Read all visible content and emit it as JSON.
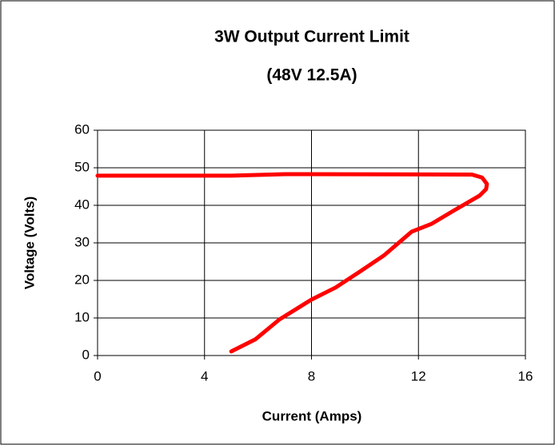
{
  "chart_data": {
    "type": "line",
    "title": "3W Output Current Limit",
    "subtitle": "(48V 12.5A)",
    "x_label": "Current (Amps)",
    "y_label": "Voltage (Volts)",
    "x": [
      0,
      5.0,
      7.0,
      14.0,
      14.38,
      14.56,
      14.53,
      14.29,
      13.25,
      12.5,
      11.75,
      10.7,
      9.8,
      8.9,
      8.0,
      6.8,
      5.9,
      5.0
    ],
    "values": [
      47.9,
      47.9,
      48.3,
      48.2,
      47.4,
      45.7,
      44.3,
      42.6,
      38.3,
      35.1,
      33.0,
      26.6,
      22.3,
      18.1,
      14.9,
      9.6,
      4.3,
      1.1
    ],
    "color": "#ff0000",
    "xlim": [
      0,
      16
    ],
    "xticks": [
      0,
      4,
      8,
      12,
      16
    ],
    "ylim": [
      0,
      60
    ],
    "yticks": [
      0,
      10,
      20,
      30,
      40,
      50,
      60
    ],
    "grid": true
  }
}
